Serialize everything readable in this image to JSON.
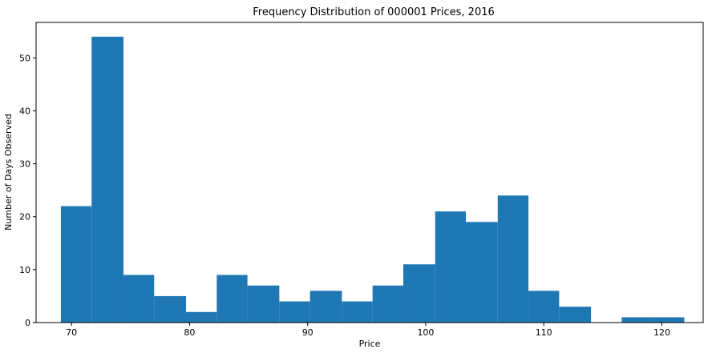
{
  "chart_data": {
    "type": "bar",
    "title": "Frequency Distribution of 000001 Prices, 2016",
    "xlabel": "Price",
    "ylabel": "Number of Days Observed",
    "bar_color": "#1f77b4",
    "xlim": [
      67.0,
      123.5
    ],
    "ylim": [
      0,
      56.7
    ],
    "x_ticks": [
      70,
      80,
      90,
      100,
      110,
      120
    ],
    "y_ticks": [
      0,
      10,
      20,
      30,
      40,
      50
    ],
    "bins": [
      {
        "start": 69.1,
        "end": 71.7,
        "value": 22
      },
      {
        "start": 71.7,
        "end": 74.4,
        "value": 54
      },
      {
        "start": 74.4,
        "end": 77.0,
        "value": 9
      },
      {
        "start": 77.0,
        "end": 79.7,
        "value": 5
      },
      {
        "start": 79.7,
        "end": 82.3,
        "value": 2
      },
      {
        "start": 82.3,
        "end": 84.9,
        "value": 9
      },
      {
        "start": 84.9,
        "end": 87.6,
        "value": 7
      },
      {
        "start": 87.6,
        "end": 90.2,
        "value": 4
      },
      {
        "start": 90.2,
        "end": 92.9,
        "value": 6
      },
      {
        "start": 92.9,
        "end": 95.5,
        "value": 4
      },
      {
        "start": 95.5,
        "end": 98.1,
        "value": 7
      },
      {
        "start": 98.1,
        "end": 100.8,
        "value": 11
      },
      {
        "start": 100.8,
        "end": 103.4,
        "value": 21
      },
      {
        "start": 103.4,
        "end": 106.1,
        "value": 19
      },
      {
        "start": 106.1,
        "end": 108.7,
        "value": 24
      },
      {
        "start": 108.7,
        "end": 111.3,
        "value": 6
      },
      {
        "start": 111.3,
        "end": 114.0,
        "value": 3
      },
      {
        "start": 114.0,
        "end": 116.6,
        "value": 0
      },
      {
        "start": 116.6,
        "end": 119.3,
        "value": 1
      },
      {
        "start": 119.3,
        "end": 121.9,
        "value": 1
      }
    ]
  }
}
